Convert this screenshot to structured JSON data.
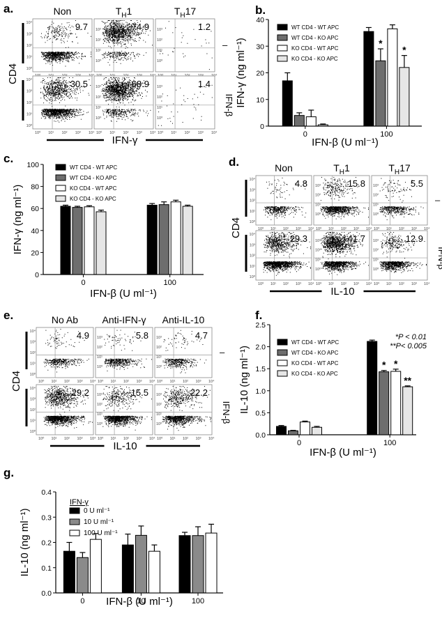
{
  "figure": {
    "panels": {
      "a": {
        "letter": "a.",
        "columns": [
          "Non",
          "T",
          "T"
        ],
        "column_subscripts": [
          "",
          "H",
          "H"
        ],
        "column_suffix": [
          "",
          "1",
          "17"
        ],
        "row_labels": [
          "–",
          "IFN-β"
        ],
        "y_label": "CD4",
        "x_label": "IFN-γ",
        "percentages": [
          [
            "9.7",
            "74.9",
            "1.2"
          ],
          [
            "30.5",
            "68.9",
            "1.4"
          ]
        ],
        "densities": [
          [
            900,
            1200,
            30
          ],
          [
            1500,
            1400,
            40
          ]
        ]
      },
      "d": {
        "letter": "d.",
        "columns": [
          "Non",
          "T",
          "T"
        ],
        "column_subscripts": [
          "",
          "H",
          "H"
        ],
        "column_suffix": [
          "",
          "1",
          "17"
        ],
        "row_labels": [
          "–",
          "IFN-β"
        ],
        "y_label": "CD4",
        "x_label": "IL-10",
        "percentages": [
          [
            "4.8",
            "15.8",
            "5.5"
          ],
          [
            "29.3",
            "41.7",
            "12.9"
          ]
        ],
        "densities": [
          [
            400,
            900,
            450
          ],
          [
            1500,
            1600,
            900
          ]
        ]
      },
      "e": {
        "letter": "e.",
        "columns": [
          "No Ab",
          "Anti-IFN-γ",
          "Anti-IL-10"
        ],
        "column_subscripts": [
          "",
          "",
          ""
        ],
        "column_suffix": [
          "",
          "",
          ""
        ],
        "row_labels": [
          "–",
          "IFN-β"
        ],
        "y_label": "CD4",
        "x_label": "IL-10",
        "percentages": [
          [
            "4.9",
            "5.8",
            "4.7"
          ],
          [
            "29.2",
            "15.5",
            "22.2"
          ]
        ],
        "densities": [
          [
            400,
            450,
            380
          ],
          [
            1500,
            1100,
            1000
          ]
        ]
      }
    },
    "axis_ticks_flow": [
      "10⁰",
      "10¹",
      "10²",
      "10³",
      "10⁴"
    ]
  },
  "chart_data": [
    {
      "panel": "b.",
      "type": "bar",
      "categories": [
        "0",
        "100"
      ],
      "xlabel": "IFN-β (U ml⁻¹)",
      "ylabel": "IFN-γ (ng ml⁻¹)",
      "ylim": [
        0,
        40
      ],
      "yticks": [
        0,
        10,
        20,
        30,
        40
      ],
      "series": [
        {
          "name": "WT CD4 - WT APC",
          "fill": "#000000",
          "values": [
            17,
            35.5
          ],
          "errors": [
            3,
            1.5
          ],
          "sig": [
            "",
            ""
          ]
        },
        {
          "name": "WT CD4 - KO APC",
          "fill": "#6e6e6e",
          "values": [
            4,
            24.5
          ],
          "errors": [
            1,
            4.5
          ],
          "sig": [
            "",
            "*"
          ]
        },
        {
          "name": "KO CD4 - WT APC",
          "fill": "#ffffff",
          "values": [
            3.5,
            36.5
          ],
          "errors": [
            2.5,
            1.5
          ],
          "sig": [
            "",
            ""
          ]
        },
        {
          "name": "KO CD4 - KO APC",
          "fill": "#e6e6e6",
          "values": [
            0.5,
            22
          ],
          "errors": [
            0.3,
            4.5
          ],
          "sig": [
            "",
            "*"
          ]
        }
      ]
    },
    {
      "panel": "c.",
      "type": "bar",
      "categories": [
        "0",
        "100"
      ],
      "xlabel": "IFN-β (U ml⁻¹)",
      "ylabel": "IFN-γ (ng ml⁻¹)",
      "ylim": [
        0,
        100
      ],
      "yticks": [
        0,
        20,
        40,
        60,
        80,
        100
      ],
      "series": [
        {
          "name": "WT CD4 - WT APC",
          "fill": "#000000",
          "values": [
            62,
            63
          ],
          "errors": [
            1,
            1.5
          ],
          "sig": [
            "",
            ""
          ]
        },
        {
          "name": "WT CD4 - KO APC",
          "fill": "#6e6e6e",
          "values": [
            61,
            63.5
          ],
          "errors": [
            1,
            2.5
          ],
          "sig": [
            "",
            ""
          ]
        },
        {
          "name": "KO CD4 - WT APC",
          "fill": "#ffffff",
          "values": [
            61.5,
            66
          ],
          "errors": [
            1,
            1.5
          ],
          "sig": [
            "",
            ""
          ]
        },
        {
          "name": "KO CD4 - KO APC",
          "fill": "#e6e6e6",
          "values": [
            57,
            62
          ],
          "errors": [
            1.5,
            1
          ],
          "sig": [
            "",
            ""
          ]
        }
      ]
    },
    {
      "panel": "f.",
      "type": "bar",
      "categories": [
        "0",
        "100"
      ],
      "xlabel": "IFN-β (U ml⁻¹)",
      "ylabel": "IL-10 (ng ml⁻¹)",
      "ylim": [
        0,
        2.5
      ],
      "yticks": [
        0.0,
        0.5,
        1.0,
        1.5,
        2.0,
        2.5
      ],
      "annotations": [
        "*P < 0.01",
        "**P< 0.005"
      ],
      "series": [
        {
          "name": "WT CD4 - WT APC",
          "fill": "#000000",
          "values": [
            0.19,
            2.12
          ],
          "errors": [
            0.02,
            0.03
          ],
          "sig": [
            "",
            ""
          ]
        },
        {
          "name": "WT CD4 - KO APC",
          "fill": "#6e6e6e",
          "values": [
            0.09,
            1.43
          ],
          "errors": [
            0.01,
            0.03
          ],
          "sig": [
            "",
            "*"
          ]
        },
        {
          "name": "KO CD4 - WT APC",
          "fill": "#ffffff",
          "values": [
            0.29,
            1.44
          ],
          "errors": [
            0.02,
            0.05
          ],
          "sig": [
            "",
            "*"
          ]
        },
        {
          "name": "KO CD4 - KO APC",
          "fill": "#e6e6e6",
          "values": [
            0.17,
            1.09
          ],
          "errors": [
            0.02,
            0.02
          ],
          "sig": [
            "",
            "**"
          ]
        }
      ]
    },
    {
      "panel": "g.",
      "type": "bar",
      "categories": [
        "0",
        "10",
        "100"
      ],
      "xlabel": "IFN-β (U ml⁻¹)",
      "ylabel": "IL-10 (ng ml⁻¹)",
      "ylim": [
        0,
        0.4
      ],
      "yticks": [
        0.0,
        0.1,
        0.2,
        0.3,
        0.4
      ],
      "legend_title": "IFN-γ",
      "series": [
        {
          "name": "0 U ml⁻¹",
          "fill": "#000000",
          "values": [
            0.165,
            0.19,
            0.227
          ],
          "errors": [
            0.035,
            0.043,
            0.013
          ],
          "sig": [
            "",
            "",
            ""
          ]
        },
        {
          "name": "10 U ml⁻¹",
          "fill": "#8a8a8a",
          "values": [
            0.14,
            0.228,
            0.227
          ],
          "errors": [
            0.02,
            0.037,
            0.035
          ],
          "sig": [
            "",
            "",
            ""
          ]
        },
        {
          "name": "100 U ml⁻¹",
          "fill": "#ffffff",
          "values": [
            0.212,
            0.165,
            0.237
          ],
          "errors": [
            0.023,
            0.025,
            0.035
          ],
          "sig": [
            "",
            "",
            ""
          ]
        }
      ]
    }
  ]
}
